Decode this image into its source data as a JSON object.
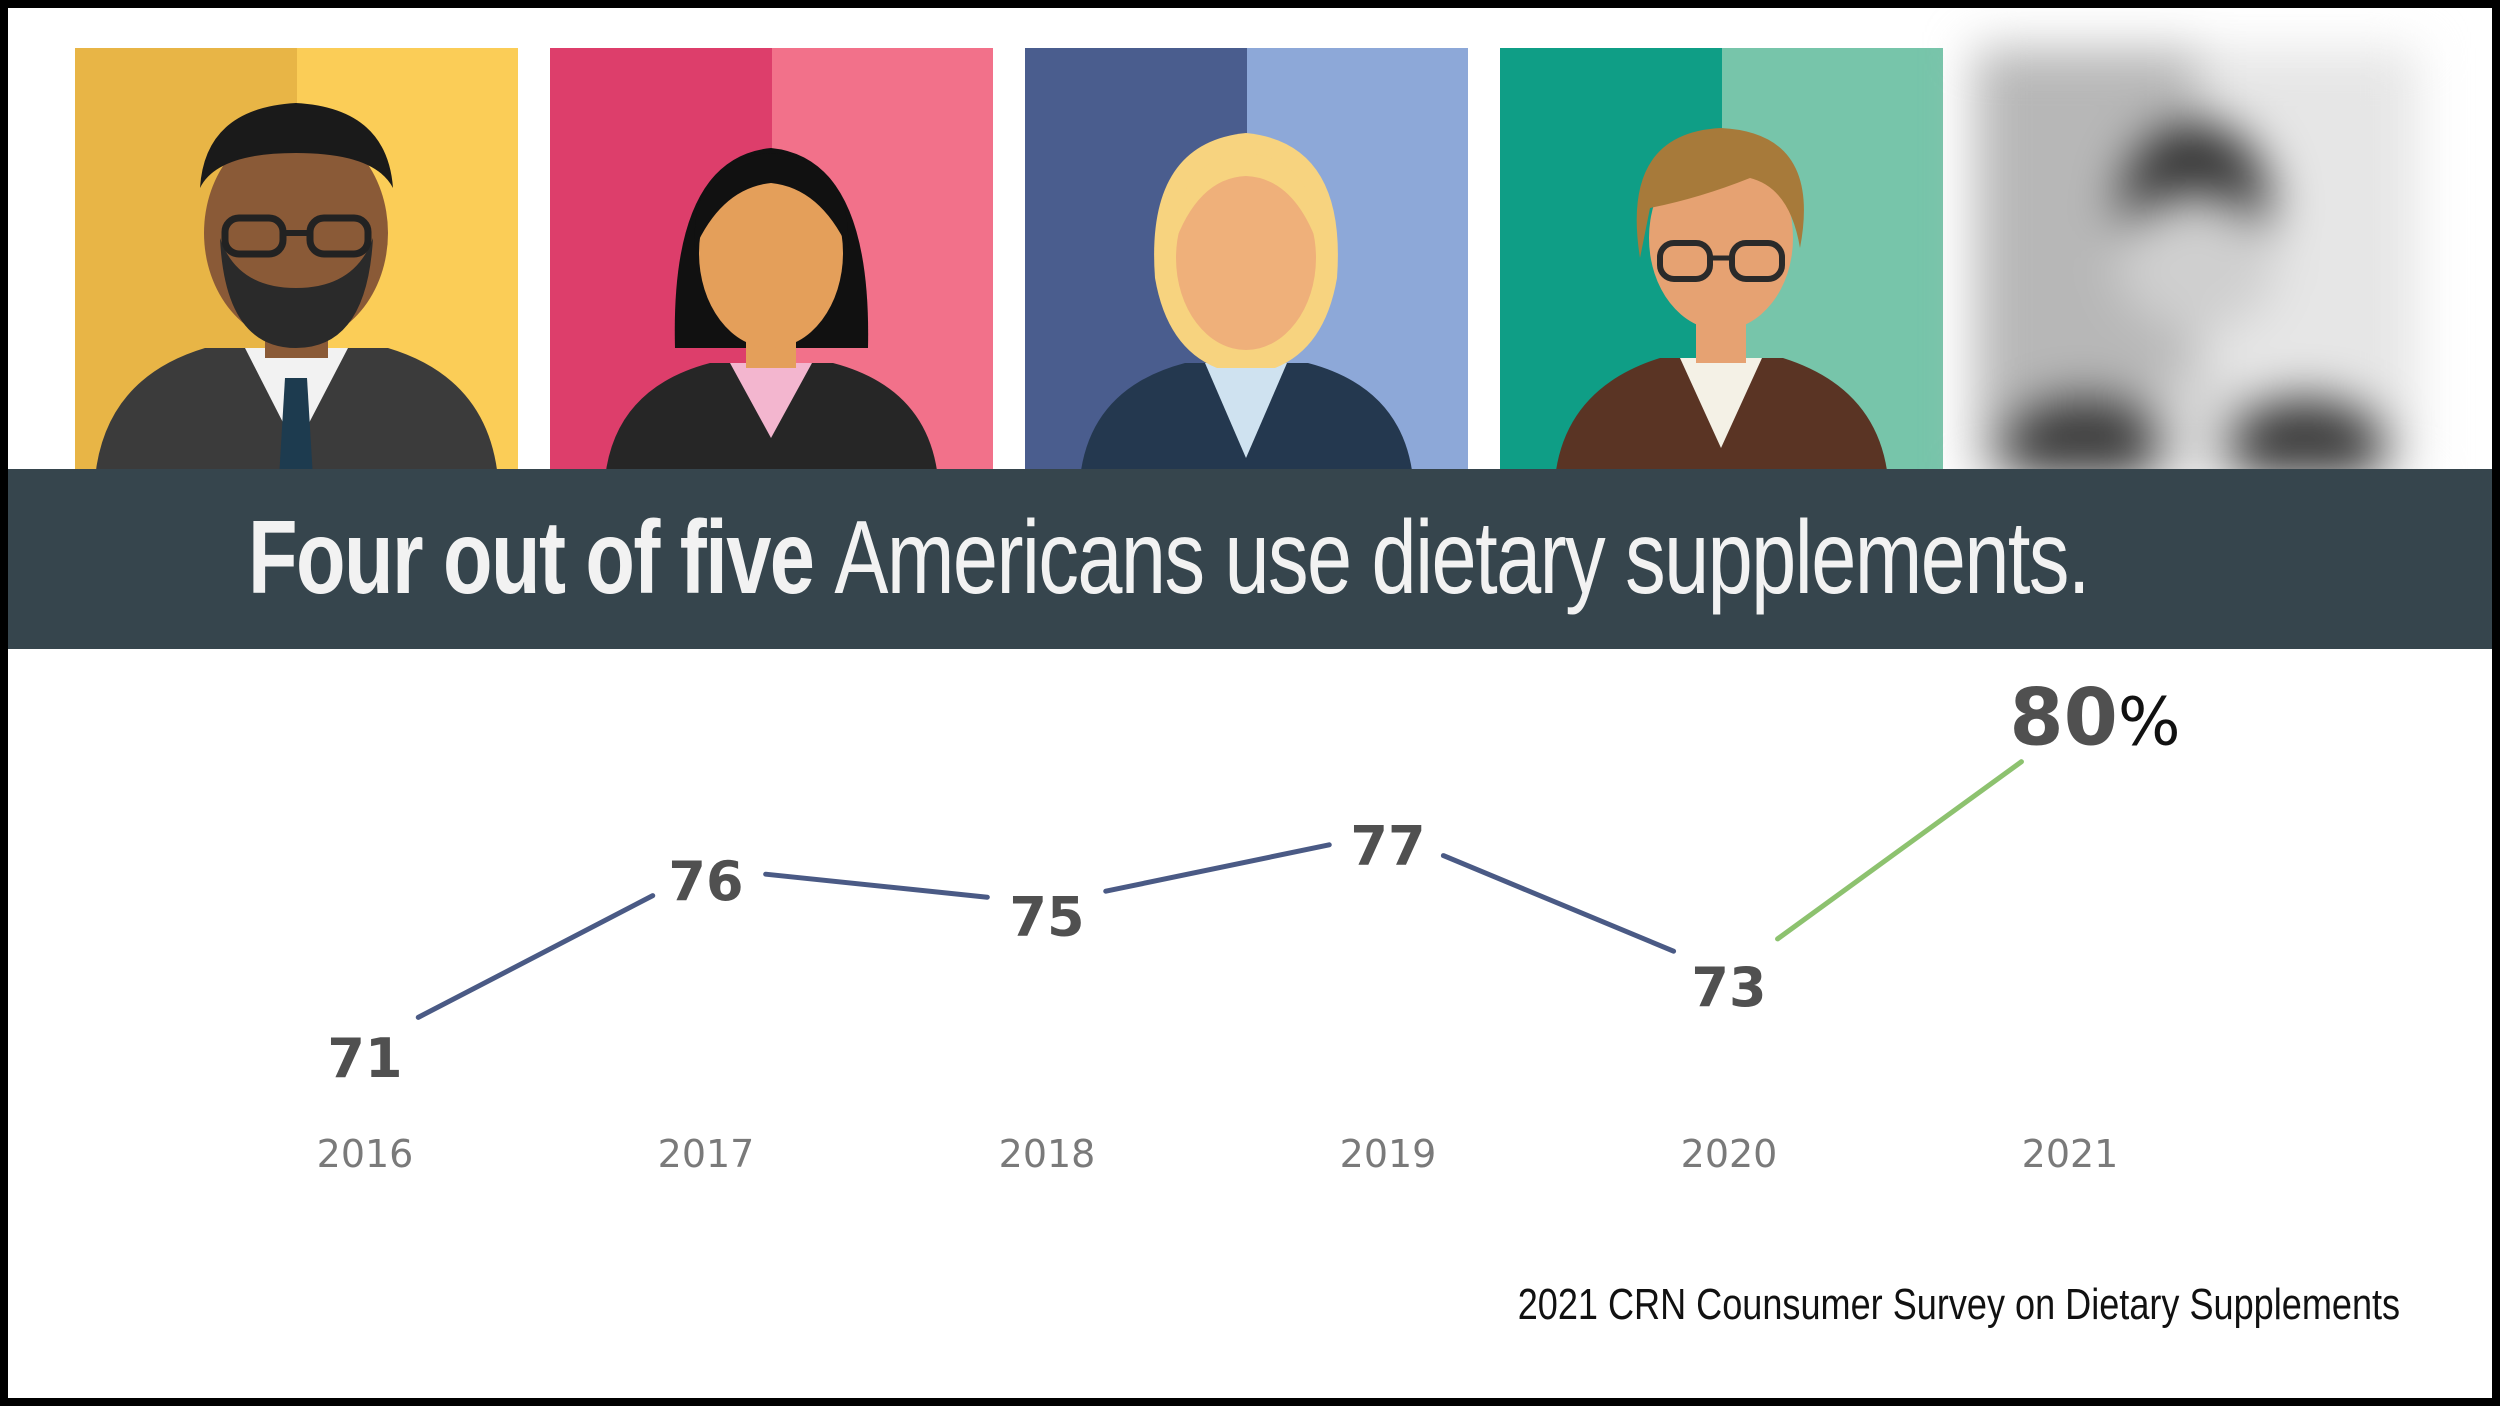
{
  "headline": {
    "bold_part": "Four out of five",
    "rest": "Americans use dietary supplements."
  },
  "source": "2021 CRN Counsumer Survey on Dietary Supplements",
  "panels": [
    {
      "icon": "man-glasses-beard-avatar-icon",
      "left_color": "#e8b546",
      "right_color": "#fbcd57"
    },
    {
      "icon": "woman-black-hair-avatar-icon",
      "left_color": "#dd3e6b",
      "right_color": "#f2718a"
    },
    {
      "icon": "woman-blonde-avatar-icon",
      "left_color": "#4a5d8e",
      "right_color": "#8da8d8"
    },
    {
      "icon": "woman-glasses-avatar-icon",
      "left_color": "#0f9e86",
      "right_color": "#77c5aa"
    },
    {
      "icon": "blurred-person-avatar-icon",
      "left_color": "#b7b7b7",
      "right_color": "#e6e6e6"
    }
  ],
  "chart_data": {
    "type": "line",
    "categories": [
      "2016",
      "2017",
      "2018",
      "2019",
      "2020",
      "2021"
    ],
    "values": [
      71,
      76,
      75,
      77,
      73,
      80
    ],
    "data_labels": [
      "71",
      "76",
      "75",
      "77",
      "73",
      "80"
    ],
    "last_label_suffix": "%",
    "series_color": "#4a5a85",
    "highlight_color": "#8dc26f",
    "highlight_segment": [
      "2020",
      "2021"
    ],
    "grid": false,
    "legend": "none"
  }
}
